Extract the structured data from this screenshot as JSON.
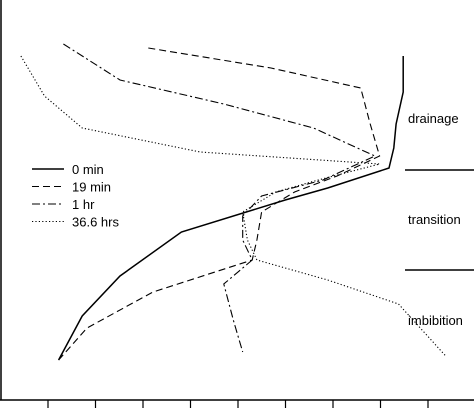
{
  "chart_data": {
    "type": "line",
    "title": "",
    "xlabel": "",
    "ylabel": "",
    "grid": false,
    "legend_placement": "middle-left",
    "ylim": [
      0,
      100
    ],
    "xlim": [
      0,
      100
    ],
    "series": [
      {
        "name": "0 min",
        "dash": "solid",
        "points": [
          [
            85,
            86
          ],
          [
            85,
            77
          ],
          [
            83.5,
            69
          ],
          [
            83,
            63
          ],
          [
            82,
            58
          ],
          [
            69,
            53
          ],
          [
            60,
            50
          ],
          [
            38,
            42
          ],
          [
            25,
            31
          ],
          [
            17,
            21
          ],
          [
            12,
            10
          ]
        ]
      },
      {
        "name": "19 min",
        "dash": "dashed",
        "points": [
          [
            31,
            88
          ],
          [
            57,
            83
          ],
          [
            76,
            78
          ],
          [
            78,
            69
          ],
          [
            80,
            61
          ],
          [
            71,
            56
          ],
          [
            62,
            52
          ],
          [
            55,
            47
          ],
          [
            54,
            40
          ],
          [
            53,
            35
          ],
          [
            32,
            27
          ],
          [
            18,
            18
          ],
          [
            12,
            10
          ]
        ]
      },
      {
        "name": "1 hr",
        "dash": "dashdot",
        "points": [
          [
            13,
            89
          ],
          [
            25,
            80
          ],
          [
            47,
            74
          ],
          [
            66,
            68
          ],
          [
            79,
            61
          ],
          [
            68,
            55
          ],
          [
            55,
            51
          ],
          [
            51,
            46
          ],
          [
            51,
            40
          ],
          [
            53,
            35
          ],
          [
            47,
            29
          ],
          [
            49,
            20
          ],
          [
            51,
            12
          ]
        ]
      },
      {
        "name": "36.6 hrs",
        "dash": "dotted",
        "points": [
          [
            4,
            86
          ],
          [
            9,
            76
          ],
          [
            17,
            68
          ],
          [
            42,
            62
          ],
          [
            80,
            59
          ],
          [
            67,
            55
          ],
          [
            58,
            52
          ],
          [
            51,
            47
          ],
          [
            52,
            40
          ],
          [
            54,
            35
          ],
          [
            69,
            30
          ],
          [
            84,
            24
          ],
          [
            94,
            11
          ]
        ]
      }
    ],
    "annotations": [
      "drainage",
      "transition",
      "imbibition"
    ]
  }
}
